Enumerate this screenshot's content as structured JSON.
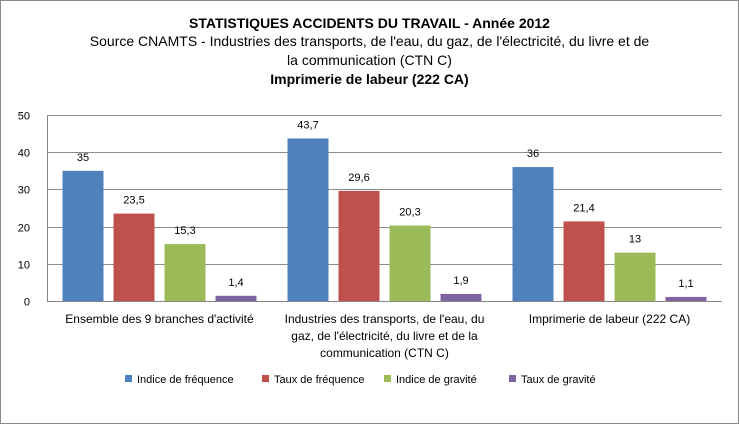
{
  "chart_data": {
    "type": "bar",
    "title": "STATISTIQUES ACCIDENTS DU TRAVAIL - Année 2012",
    "subtitle_lines": [
      "Source  CNAMTS - Industries des transports, de l'eau, du gaz, de l'électricité, du livre et de",
      "la communication  (CTN C)"
    ],
    "subtitle2": "Imprimerie de labeur (222 CA)",
    "categories": [
      [
        "Ensemble des 9 branches d'activité"
      ],
      [
        "Industries des transports, de l'eau, du",
        "gaz, de l'électricité, du livre et de la",
        "communication (CTN C)"
      ],
      [
        "Imprimerie de labeur (222 CA)"
      ]
    ],
    "series": [
      {
        "name": "Indice de fréquence",
        "color": "#4f81bd",
        "values": [
          35,
          43.7,
          36
        ],
        "labels": [
          "35",
          "43,7",
          "36"
        ]
      },
      {
        "name": "Taux de fréquence",
        "color": "#c0504d",
        "values": [
          23.5,
          29.6,
          21.4
        ],
        "labels": [
          "23,5",
          "29,6",
          "21,4"
        ]
      },
      {
        "name": "Indice de gravité",
        "color": "#9bbb59",
        "values": [
          15.3,
          20.3,
          13
        ],
        "labels": [
          "15,3",
          "20,3",
          "13"
        ]
      },
      {
        "name": "Taux de gravité",
        "color": "#8064a2",
        "values": [
          1.4,
          1.9,
          1.1
        ],
        "labels": [
          "1,4",
          "1,9",
          "1,1"
        ]
      }
    ],
    "ylim": [
      0,
      50
    ],
    "yticks": [
      0,
      10,
      20,
      30,
      40,
      50
    ],
    "grid": true,
    "legend_position": "bottom"
  }
}
